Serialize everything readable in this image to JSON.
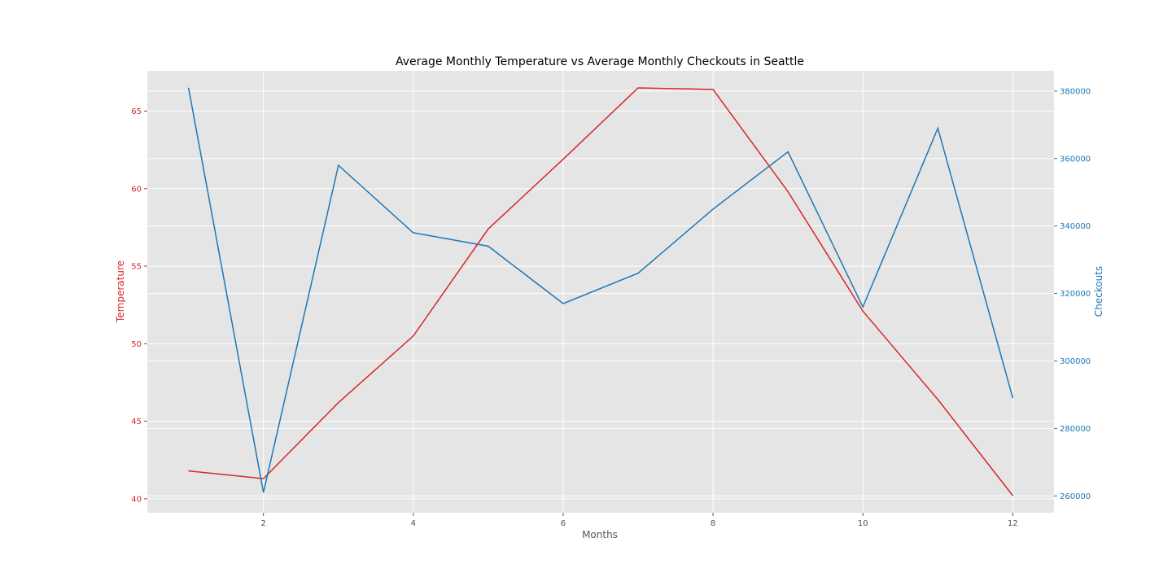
{
  "chart_data": {
    "type": "line",
    "title": "Average Monthly Temperature vs Average Monthly Checkouts in Seattle",
    "xlabel": "Months",
    "ylabel": "Temperature",
    "y2label": "Checkouts",
    "xlim": [
      0.45,
      12.55
    ],
    "ylim": [
      39.1,
      67.6
    ],
    "y2lim": [
      255000,
      386000
    ],
    "xticks": [
      2,
      4,
      6,
      8,
      10,
      12
    ],
    "yticks": [
      40,
      45,
      50,
      55,
      60,
      65
    ],
    "y2ticks": [
      260000,
      280000,
      300000,
      320000,
      340000,
      360000,
      380000
    ],
    "x": [
      1,
      2,
      3,
      4,
      5,
      6,
      7,
      8,
      9,
      10,
      11,
      12
    ],
    "series": [
      {
        "axis": "left",
        "color": "#d62728",
        "values": [
          41.8,
          41.3,
          46.2,
          50.5,
          57.4,
          61.9,
          66.5,
          66.4,
          59.8,
          52.1,
          46.4,
          40.2
        ]
      },
      {
        "axis": "right",
        "color": "#1f77b4",
        "values": [
          381000,
          261000,
          358000,
          338000,
          334000,
          317000,
          326000,
          345000,
          362000,
          316000,
          369000,
          289000
        ]
      }
    ],
    "grid": true,
    "background": "#e5e5e5",
    "left_axis_color": "#d62728",
    "right_axis_color": "#1f77b4"
  }
}
